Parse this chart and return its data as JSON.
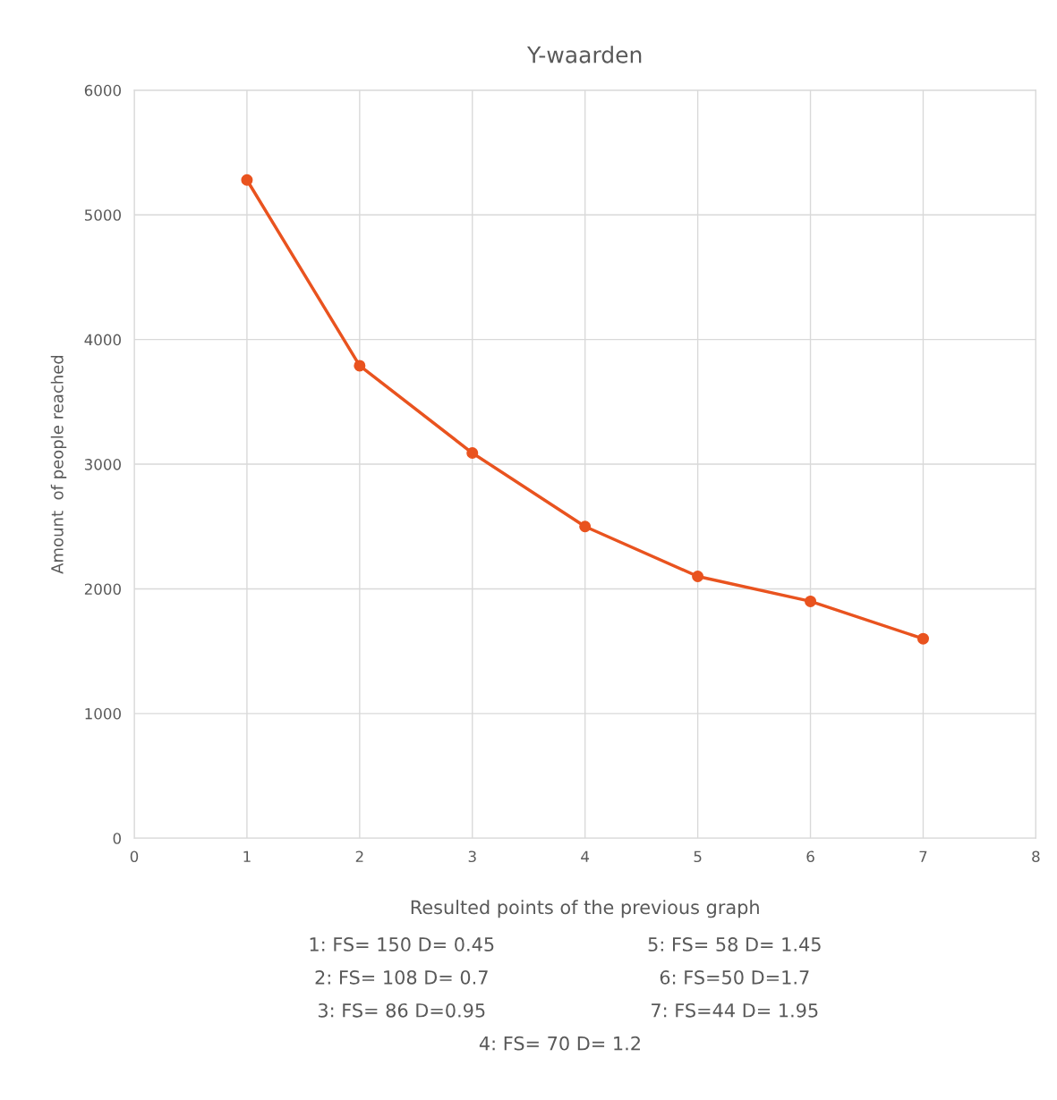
{
  "chart_data": {
    "type": "line",
    "title": "Y-waarden",
    "xlabel": "Resulted points of the previous graph",
    "ylabel": "Amount  of people reached",
    "x": [
      1,
      2,
      3,
      4,
      5,
      6,
      7
    ],
    "series": [
      {
        "color": "#e9531f",
        "values": [
          5280,
          3790,
          3090,
          2500,
          2100,
          1900,
          1600
        ]
      }
    ],
    "xlim": [
      0,
      8
    ],
    "xticks": [
      0,
      1,
      2,
      3,
      4,
      5,
      6,
      7,
      8
    ],
    "ylim": [
      0,
      6000
    ],
    "yticks": [
      0,
      1000,
      2000,
      3000,
      4000,
      5000,
      6000
    ],
    "grid": true,
    "legend": false,
    "marker": "circle",
    "line_style": "solid",
    "annotations": [
      "1: FS= 150 D= 0.45",
      "2: FS= 108 D= 0.7",
      "3: FS= 86 D=0.95",
      "4: FS= 70 D= 1.2",
      "5: FS= 58 D= 1.45",
      "6: FS=50 D=1.7",
      "7: FS=44 D= 1.95"
    ]
  }
}
